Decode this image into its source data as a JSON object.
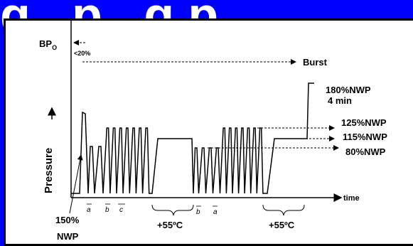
{
  "header": {
    "text": "g...p...g.p..."
  },
  "diagram": {
    "y_label_bp": "BP",
    "y_label_bp_sub": "O",
    "lt20_label": "<20%",
    "burst_label": "Burst",
    "label_180_line1": "180%NWP",
    "label_180_line2": "4 min",
    "label_125": "125%NWP",
    "label_115": "115%NWP",
    "label_80": "80%NWP",
    "pressure_label": "Pressure",
    "time_label": "time",
    "label_150_line1": "150%",
    "label_150_line2": "NWP",
    "label_a1": "a",
    "label_b1": "b",
    "label_c1": "c",
    "label_b2": "b",
    "label_a2": "a",
    "temp1": "+55ºC",
    "temp2": "+55ºC"
  },
  "colors": {
    "background": "#0000ff",
    "panel": "#ffffff",
    "ink": "#000000"
  }
}
